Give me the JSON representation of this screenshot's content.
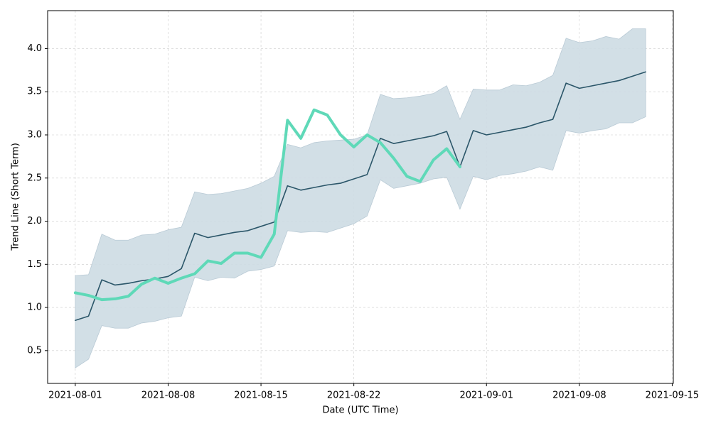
{
  "chart_data": {
    "type": "line",
    "xlabel": "Date (UTC Time)",
    "ylabel": "Trend Line (Short Term)",
    "x": [
      "2021-08-01",
      "2021-08-02",
      "2021-08-03",
      "2021-08-04",
      "2021-08-05",
      "2021-08-06",
      "2021-08-07",
      "2021-08-08",
      "2021-08-09",
      "2021-08-10",
      "2021-08-11",
      "2021-08-12",
      "2021-08-13",
      "2021-08-14",
      "2021-08-15",
      "2021-08-16",
      "2021-08-17",
      "2021-08-18",
      "2021-08-19",
      "2021-08-20",
      "2021-08-21",
      "2021-08-22",
      "2021-08-23",
      "2021-08-24",
      "2021-08-25",
      "2021-08-26",
      "2021-08-27",
      "2021-08-28",
      "2021-08-29",
      "2021-08-30",
      "2021-08-31",
      "2021-09-01",
      "2021-09-02",
      "2021-09-03",
      "2021-09-04",
      "2021-09-05",
      "2021-09-06",
      "2021-09-07",
      "2021-09-08",
      "2021-09-09",
      "2021-09-10",
      "2021-09-11",
      "2021-09-12",
      "2021-09-13"
    ],
    "band": {
      "color": "#cddbe3",
      "upper": [
        1.37,
        1.38,
        1.85,
        1.78,
        1.78,
        1.84,
        1.85,
        1.9,
        1.93,
        2.34,
        2.31,
        2.32,
        2.35,
        2.38,
        2.44,
        2.52,
        2.89,
        2.85,
        2.91,
        2.93,
        2.94,
        2.95,
        3.0,
        3.47,
        3.42,
        3.43,
        3.45,
        3.48,
        3.57,
        3.18,
        3.53,
        3.52,
        3.52,
        3.58,
        3.57,
        3.61,
        3.69,
        4.12,
        4.07,
        4.09,
        4.14,
        4.11,
        4.23,
        4.23
      ],
      "lower": [
        0.3,
        0.4,
        0.79,
        0.76,
        0.76,
        0.82,
        0.84,
        0.88,
        0.9,
        1.35,
        1.31,
        1.35,
        1.34,
        1.42,
        1.44,
        1.48,
        1.89,
        1.87,
        1.88,
        1.87,
        1.92,
        1.97,
        2.06,
        2.48,
        2.38,
        2.41,
        2.44,
        2.49,
        2.51,
        2.14,
        2.52,
        2.48,
        2.53,
        2.55,
        2.58,
        2.63,
        2.59,
        3.05,
        3.02,
        3.05,
        3.07,
        3.14,
        3.14,
        3.21
      ]
    },
    "series": [
      {
        "color": "#2b5669",
        "width": 1.6,
        "values": [
          0.85,
          0.9,
          1.32,
          1.26,
          1.28,
          1.31,
          1.33,
          1.36,
          1.45,
          1.86,
          1.81,
          1.84,
          1.87,
          1.89,
          1.94,
          1.99,
          2.41,
          2.36,
          2.39,
          2.42,
          2.44,
          2.49,
          2.54,
          2.96,
          2.9,
          2.93,
          2.96,
          2.99,
          3.04,
          2.63,
          3.05,
          3.0,
          3.03,
          3.06,
          3.09,
          3.14,
          3.18,
          3.6,
          3.54,
          3.57,
          3.6,
          3.63,
          3.68,
          3.73
        ]
      },
      {
        "color": "#5fd9b8",
        "width": 4,
        "values": [
          1.17,
          1.14,
          1.09,
          1.1,
          1.13,
          1.27,
          1.34,
          1.28,
          1.34,
          1.39,
          1.54,
          1.51,
          1.63,
          1.63,
          1.58,
          1.85,
          3.17,
          2.96,
          3.29,
          3.23,
          3.0,
          2.86,
          3.0,
          2.91,
          2.73,
          2.52,
          2.46,
          2.71,
          2.84,
          2.63,
          null,
          null,
          null,
          null,
          null,
          null,
          null,
          null,
          null,
          null,
          null,
          null,
          null,
          null
        ]
      }
    ],
    "xlim": [
      "2021-07-29T22:00",
      "2021-09-15T02:00"
    ],
    "xticks": [
      "2021-08-01",
      "2021-08-08",
      "2021-08-15",
      "2021-08-22",
      "2021-09-01",
      "2021-09-08",
      "2021-09-15"
    ],
    "ylim": [
      0.12,
      4.44
    ],
    "yticks": [
      0.5,
      {
        "value": 1,
        "label": "1.0"
      },
      1.5,
      {
        "value": 2,
        "label": "2.0"
      },
      2.5,
      {
        "value": 3,
        "label": "3.0"
      },
      3.5,
      {
        "value": 4,
        "label": "4.0"
      }
    ],
    "grid": true
  }
}
